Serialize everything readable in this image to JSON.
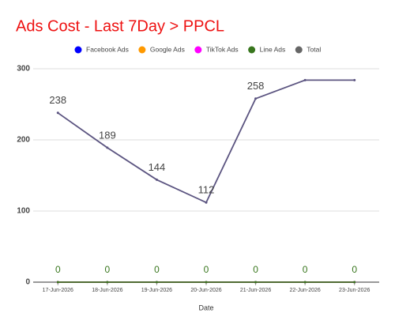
{
  "chart_data": {
    "type": "line",
    "title": "Ads Cost - Last 7Day > PPCL",
    "x_label": "Date",
    "categories": [
      "17-Jun-2026",
      "18-Jun-2026",
      "19-Jun-2026",
      "20-Jun-2026",
      "21-Jun-2026",
      "22-Jun-2026",
      "23-Jun-2026"
    ],
    "series": [
      {
        "name": "Facebook Ads",
        "color": "#0000ff",
        "values": [
          0,
          0,
          0,
          0,
          0,
          0,
          0
        ]
      },
      {
        "name": "Google Ads",
        "color": "#ff9900",
        "values": [
          0,
          0,
          0,
          0,
          0,
          0,
          0
        ]
      },
      {
        "name": "TikTok Ads",
        "color": "#ff00ff",
        "values": [
          0,
          0,
          0,
          0,
          0,
          0,
          0
        ]
      },
      {
        "name": "Line Ads",
        "color": "#38761d",
        "values": [
          0,
          0,
          0,
          0,
          0,
          0,
          0
        ],
        "value_labels": [
          "0",
          "0",
          "0",
          "0",
          "0",
          "0",
          "0"
        ]
      },
      {
        "name": "Total",
        "color": "#5b5480",
        "values": [
          238,
          189,
          144,
          112,
          258,
          284,
          284
        ],
        "value_labels": [
          "238",
          "189",
          "144",
          "112",
          "258",
          null,
          null
        ]
      }
    ],
    "ylim": [
      0,
      300
    ],
    "yticks": [
      0,
      100,
      200,
      300
    ],
    "grid": true,
    "legend": "top"
  }
}
